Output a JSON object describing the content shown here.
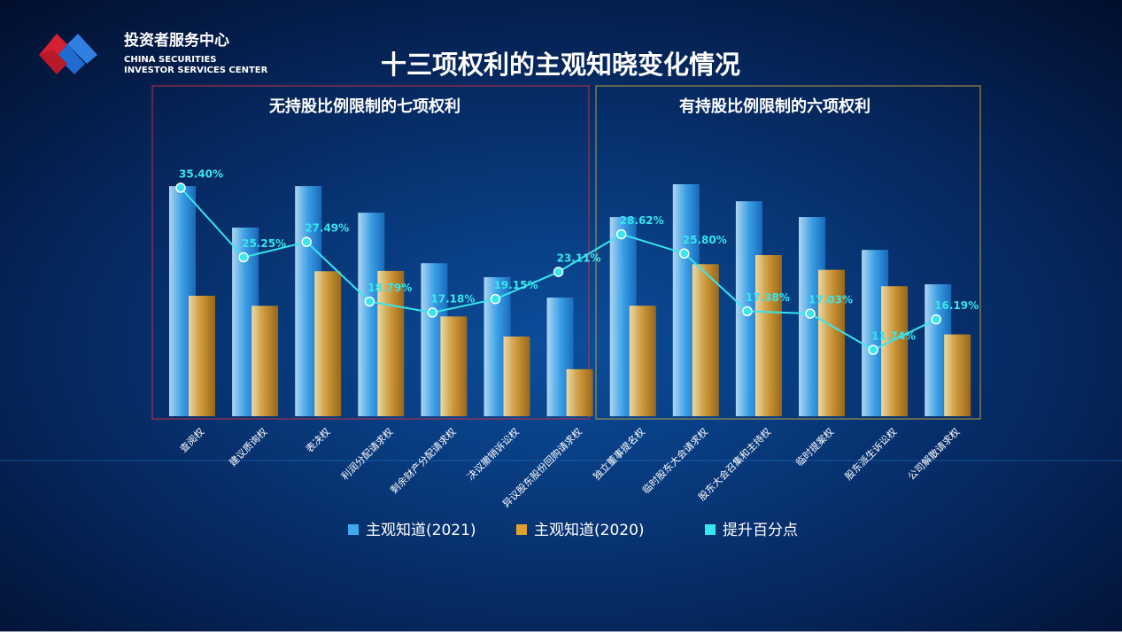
{
  "logo": {
    "name": "投资者服务中心",
    "en1": "CHINA SECURITIES",
    "en2": "INVESTOR SERVICES CENTER"
  },
  "chart_data": {
    "type": "bar",
    "title": "十三项权利的主观知晓变化情况",
    "groups": [
      "无持股比例限制的七项权利",
      "有持股比例限制的六项权利"
    ],
    "categories": [
      "查阅权",
      "建议质询权",
      "表决权",
      "利润分配请求权",
      "剩余财产分配请求权",
      "决议撤销诉讼权",
      "异议股东股份回购请求权",
      "独立董事提名权",
      "临时股东大会请求权",
      "股东大会召集和主持权",
      "临时提案权",
      "股东派生诉讼权",
      "公司解散请求权"
    ],
    "series": [
      {
        "name": "主观知道(2021)",
        "color": "#3fa9f0",
        "values": [
          74.3,
          60.9,
          74.3,
          65.7,
          49.4,
          44.9,
          38.3,
          64.3,
          74.9,
          69.4,
          64.3,
          53.7,
          42.6
        ]
      },
      {
        "name": "主观知道(2020)",
        "color": "#e0a030",
        "values": [
          38.9,
          35.65,
          46.81,
          46.91,
          32.22,
          25.75,
          15.19,
          35.68,
          49.1,
          52.02,
          47.27,
          41.96,
          26.41
        ]
      },
      {
        "name": "提升百分点",
        "type": "line",
        "color": "#37e6ee",
        "values": [
          35.4,
          25.25,
          27.49,
          18.79,
          17.18,
          19.15,
          23.11,
          28.62,
          25.8,
          17.38,
          17.03,
          11.74,
          16.19
        ],
        "value_labels": [
          "35.40%",
          "25.25%",
          "27.49%",
          "18.79%",
          "17.18%",
          "19.15%",
          "23.11%",
          "28.62%",
          "25.80%",
          "17.38%",
          "17.03%",
          "11.74%",
          "16.19%"
        ]
      }
    ]
  }
}
